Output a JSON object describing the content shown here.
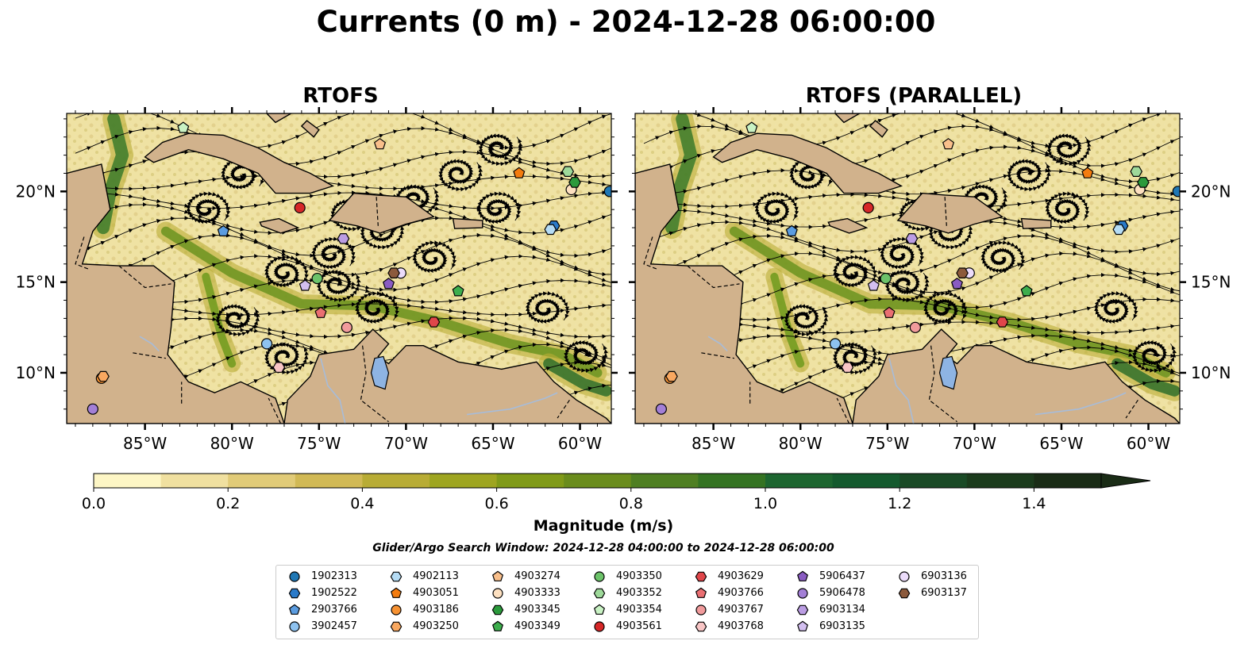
{
  "title": "Currents (0 m) - 2024-12-28 06:00:00",
  "panels": [
    {
      "title": "RTOFS"
    },
    {
      "title": "RTOFS (PARALLEL)"
    }
  ],
  "colors": {
    "land": "#d1b28c",
    "lake": "#8eb4e3",
    "river": "#a7bcd9",
    "ramp": [
      "#fdf6c5",
      "#f0e0a0",
      "#e1cb78",
      "#d1b955",
      "#b8ac35",
      "#9ea520",
      "#809a18",
      "#6a8c1c",
      "#4f7f22",
      "#347322",
      "#1d6630",
      "#145a2e",
      "#1a4a26",
      "#1b3b1c",
      "#1a2c16"
    ]
  },
  "chart_data": {
    "type": "heatmap",
    "x_ticks": [
      "85°W",
      "80°W",
      "75°W",
      "70°W",
      "65°W",
      "60°W"
    ],
    "x_tick_values": [
      -85,
      -80,
      -75,
      -70,
      -65,
      -60
    ],
    "y_ticks": [
      "20°N",
      "15°N",
      "10°N"
    ],
    "y_tick_values": [
      20,
      15,
      10
    ],
    "xlim": [
      -89.5,
      -58.2
    ],
    "ylim": [
      7.2,
      24.3
    ],
    "colorbar": {
      "label": "Magnitude (m/s)",
      "ticks": [
        "0.0",
        "0.2",
        "0.4",
        "0.6",
        "0.8",
        "1.0",
        "1.2",
        "1.4"
      ],
      "tick_values": [
        0,
        0.2,
        0.4,
        0.6,
        0.8,
        1.0,
        1.2,
        1.4
      ],
      "range": [
        0,
        1.5
      ],
      "extend": "max"
    },
    "search_window": "Glider/Argo Search Window: 2024-12-28 04:00:00 to 2024-12-28 06:00:00",
    "platforms": [
      {
        "id": "1902313",
        "marker": "circle",
        "color": "#1f77b4",
        "lon": -58.3,
        "lat": 20.0
      },
      {
        "id": "1902522",
        "marker": "hexagon",
        "color": "#2a7ac9",
        "lon": -61.5,
        "lat": 18.1
      },
      {
        "id": "2903766",
        "marker": "pentagon",
        "color": "#5b9ce0",
        "lon": -80.5,
        "lat": 17.8
      },
      {
        "id": "3902457",
        "marker": "circle",
        "color": "#8ec2ef",
        "lon": -78.0,
        "lat": 11.6
      },
      {
        "id": "4902113",
        "marker": "hexagon",
        "color": "#b5dcf5",
        "lon": -61.7,
        "lat": 17.9
      },
      {
        "id": "4903051",
        "marker": "pentagon",
        "color": "#f47c0f",
        "lon": -63.5,
        "lat": 21.0
      },
      {
        "id": "4903186",
        "marker": "circle",
        "color": "#f79232",
        "lon": -87.5,
        "lat": 9.7
      },
      {
        "id": "4903250",
        "marker": "hexagon",
        "color": "#f9a860",
        "lon": -87.4,
        "lat": 9.8
      },
      {
        "id": "4903274",
        "marker": "pentagon",
        "color": "#f9bf8b",
        "lon": -71.5,
        "lat": 22.6
      },
      {
        "id": "4903333",
        "marker": "circle",
        "color": "#fde0c0",
        "lon": -60.5,
        "lat": 20.1
      },
      {
        "id": "4903345",
        "marker": "hexagon",
        "color": "#2b9a3c",
        "lon": -60.3,
        "lat": 20.5
      },
      {
        "id": "4903349",
        "marker": "pentagon",
        "color": "#3dae4d",
        "lon": -67.0,
        "lat": 14.5
      },
      {
        "id": "4903350",
        "marker": "circle",
        "color": "#6cc36a",
        "lon": -75.1,
        "lat": 15.2
      },
      {
        "id": "4903352",
        "marker": "hexagon",
        "color": "#9ed99a",
        "lon": -60.7,
        "lat": 21.1
      },
      {
        "id": "4903354",
        "marker": "pentagon",
        "color": "#c9f2c4",
        "lon": -82.8,
        "lat": 23.5
      },
      {
        "id": "4903561",
        "marker": "circle",
        "color": "#d62728",
        "lon": -76.1,
        "lat": 19.1
      },
      {
        "id": "4903629",
        "marker": "hexagon",
        "color": "#e0464a",
        "lon": -68.4,
        "lat": 12.8
      },
      {
        "id": "4903766",
        "marker": "pentagon",
        "color": "#ea6f72",
        "lon": -74.9,
        "lat": 13.3
      },
      {
        "id": "4903767",
        "marker": "circle",
        "color": "#f19b9c",
        "lon": -73.4,
        "lat": 12.5
      },
      {
        "id": "4903768",
        "marker": "hexagon",
        "color": "#f8c5c5",
        "lon": -77.3,
        "lat": 10.3
      },
      {
        "id": "5906437",
        "marker": "pentagon",
        "color": "#8a5cc2",
        "lon": -71.0,
        "lat": 14.9
      },
      {
        "id": "5906478",
        "marker": "circle",
        "color": "#a37fd6",
        "lon": -88.0,
        "lat": 8.0
      },
      {
        "id": "6903134",
        "marker": "hexagon",
        "color": "#bb9de3",
        "lon": -73.6,
        "lat": 17.4
      },
      {
        "id": "6903135",
        "marker": "pentagon",
        "color": "#d3bff0",
        "lon": -75.8,
        "lat": 14.8
      },
      {
        "id": "6903136",
        "marker": "circle",
        "color": "#ecdcfb",
        "lon": -70.3,
        "lat": 15.5
      },
      {
        "id": "6903137",
        "marker": "hexagon",
        "color": "#8c5a3c",
        "lon": -70.7,
        "lat": 15.5
      }
    ]
  }
}
